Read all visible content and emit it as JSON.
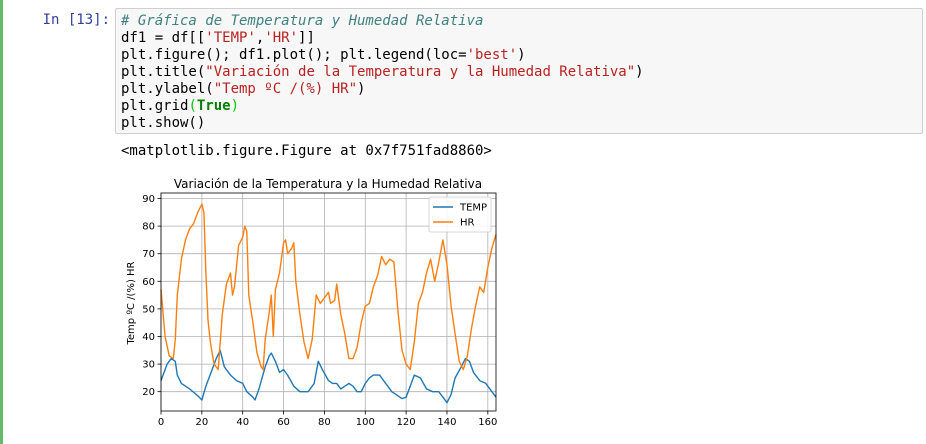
{
  "cell": {
    "prompt": "In [13]:",
    "code_lines": [
      [
        {
          "t": "# Gráfica de Temperatura y Humedad Relativa",
          "c": "c-comment"
        }
      ],
      [
        {
          "t": "df1 = df[["
        },
        {
          "t": "'TEMP'",
          "c": "c-str"
        },
        {
          "t": ","
        },
        {
          "t": "'HR'",
          "c": "c-str"
        },
        {
          "t": "]]"
        }
      ],
      [
        {
          "t": "plt.figure(); df1.plot(); plt.legend(loc="
        },
        {
          "t": "'best'",
          "c": "c-str"
        },
        {
          "t": ")"
        }
      ],
      [
        {
          "t": "plt.title("
        },
        {
          "t": "\"Variación de la Temperatura y la Humedad Relativa\"",
          "c": "c-str"
        },
        {
          "t": ")"
        }
      ],
      [
        {
          "t": "plt.ylabel("
        },
        {
          "t": "\"Temp ºC /(%) HR\"",
          "c": "c-str"
        },
        {
          "t": ")"
        }
      ],
      [
        {
          "t": "plt.grid"
        },
        {
          "t": "(",
          "c": "c-paren"
        },
        {
          "t": "True",
          "c": "c-kw"
        },
        {
          "t": ")",
          "c": "c-paren"
        }
      ],
      [
        {
          "t": "plt.show()"
        }
      ]
    ],
    "output_text": "<matplotlib.figure.Figure at 0x7f751fad8860>"
  },
  "colors": {
    "temp": "#1f77b4",
    "hr": "#ff7f0e",
    "grid": "#b0b0b0"
  },
  "chart_data": {
    "type": "line",
    "title": "Variación de la Temperatura y la Humedad Relativa",
    "xlabel": "",
    "ylabel": "Temp ºC /(%) HR",
    "xlim": [
      0,
      164
    ],
    "ylim": [
      13,
      92
    ],
    "xticks": [
      0,
      20,
      40,
      60,
      80,
      100,
      120,
      140,
      160
    ],
    "yticks": [
      20,
      30,
      40,
      50,
      60,
      70,
      80,
      90
    ],
    "grid": true,
    "legend_position": "top-right",
    "series": [
      {
        "name": "TEMP",
        "points": [
          [
            0,
            24
          ],
          [
            3,
            30
          ],
          [
            5,
            32
          ],
          [
            7,
            31
          ],
          [
            8,
            26
          ],
          [
            10,
            23
          ],
          [
            14,
            21
          ],
          [
            18,
            18.5
          ],
          [
            20,
            17
          ],
          [
            22,
            22
          ],
          [
            25,
            28
          ],
          [
            27,
            32
          ],
          [
            29,
            35
          ],
          [
            31,
            29
          ],
          [
            34,
            26
          ],
          [
            37,
            24
          ],
          [
            40,
            23
          ],
          [
            42,
            20
          ],
          [
            45,
            18
          ],
          [
            46,
            17
          ],
          [
            48,
            21
          ],
          [
            51,
            29
          ],
          [
            53,
            33
          ],
          [
            54,
            34
          ],
          [
            56,
            31
          ],
          [
            58,
            27
          ],
          [
            60,
            28
          ],
          [
            62,
            26
          ],
          [
            65,
            22
          ],
          [
            68,
            20
          ],
          [
            72,
            20
          ],
          [
            75,
            23
          ],
          [
            76,
            27
          ],
          [
            77,
            31
          ],
          [
            79,
            28
          ],
          [
            82,
            24
          ],
          [
            84,
            23
          ],
          [
            86,
            23
          ],
          [
            88,
            21
          ],
          [
            90,
            22
          ],
          [
            92,
            23
          ],
          [
            94,
            22
          ],
          [
            96,
            20
          ],
          [
            98,
            20
          ],
          [
            100,
            23
          ],
          [
            102,
            25
          ],
          [
            104,
            26
          ],
          [
            107,
            26
          ],
          [
            110,
            23
          ],
          [
            113,
            20
          ],
          [
            115,
            19
          ],
          [
            118,
            17.5
          ],
          [
            120,
            18
          ],
          [
            122,
            22
          ],
          [
            124,
            26
          ],
          [
            127,
            25
          ],
          [
            130,
            21
          ],
          [
            133,
            20
          ],
          [
            136,
            20
          ],
          [
            138,
            18
          ],
          [
            140,
            16
          ],
          [
            142,
            19
          ],
          [
            144,
            25
          ],
          [
            147,
            29
          ],
          [
            149,
            32
          ],
          [
            151,
            31
          ],
          [
            153,
            27
          ],
          [
            156,
            24
          ],
          [
            159,
            23
          ],
          [
            162,
            20
          ],
          [
            164,
            18
          ]
        ]
      },
      {
        "name": "HR",
        "points": [
          [
            0,
            57
          ],
          [
            2,
            40
          ],
          [
            4,
            33
          ],
          [
            6,
            32
          ],
          [
            7,
            39
          ],
          [
            8,
            55
          ],
          [
            10,
            68
          ],
          [
            12,
            75
          ],
          [
            14,
            79
          ],
          [
            16,
            81
          ],
          [
            18,
            85
          ],
          [
            20,
            88
          ],
          [
            21,
            85
          ],
          [
            22,
            63
          ],
          [
            23,
            46
          ],
          [
            24,
            39
          ],
          [
            25,
            34
          ],
          [
            26,
            30
          ],
          [
            28,
            28
          ],
          [
            30,
            48
          ],
          [
            32,
            59
          ],
          [
            34,
            63
          ],
          [
            35,
            55
          ],
          [
            36,
            58
          ],
          [
            38,
            73
          ],
          [
            40,
            76
          ],
          [
            41,
            80
          ],
          [
            42,
            78
          ],
          [
            43,
            55
          ],
          [
            45,
            45
          ],
          [
            47,
            34
          ],
          [
            49,
            29
          ],
          [
            50,
            28
          ],
          [
            51,
            39
          ],
          [
            53,
            49
          ],
          [
            54,
            55
          ],
          [
            55,
            40
          ],
          [
            56,
            57
          ],
          [
            58,
            63
          ],
          [
            60,
            74
          ],
          [
            61,
            75
          ],
          [
            62,
            70
          ],
          [
            64,
            72
          ],
          [
            65,
            74
          ],
          [
            66,
            60
          ],
          [
            68,
            48
          ],
          [
            70,
            38
          ],
          [
            72,
            32
          ],
          [
            74,
            39
          ],
          [
            76,
            55
          ],
          [
            78,
            52
          ],
          [
            80,
            54
          ],
          [
            82,
            56
          ],
          [
            83,
            52
          ],
          [
            85,
            53
          ],
          [
            86,
            59
          ],
          [
            88,
            48
          ],
          [
            90,
            41
          ],
          [
            92,
            32
          ],
          [
            94,
            32
          ],
          [
            96,
            36
          ],
          [
            98,
            45
          ],
          [
            100,
            51
          ],
          [
            102,
            52
          ],
          [
            104,
            58
          ],
          [
            106,
            62
          ],
          [
            108,
            69
          ],
          [
            110,
            66
          ],
          [
            112,
            68
          ],
          [
            114,
            67
          ],
          [
            116,
            49
          ],
          [
            118,
            35
          ],
          [
            120,
            30
          ],
          [
            122,
            28
          ],
          [
            124,
            38
          ],
          [
            126,
            52
          ],
          [
            128,
            56
          ],
          [
            130,
            63
          ],
          [
            132,
            68
          ],
          [
            134,
            60
          ],
          [
            136,
            67
          ],
          [
            138,
            75
          ],
          [
            140,
            66
          ],
          [
            142,
            51
          ],
          [
            144,
            41
          ],
          [
            146,
            31
          ],
          [
            148,
            28
          ],
          [
            150,
            33
          ],
          [
            152,
            43
          ],
          [
            154,
            51
          ],
          [
            156,
            58
          ],
          [
            158,
            56
          ],
          [
            160,
            65
          ],
          [
            162,
            72
          ],
          [
            164,
            77
          ]
        ]
      }
    ]
  }
}
